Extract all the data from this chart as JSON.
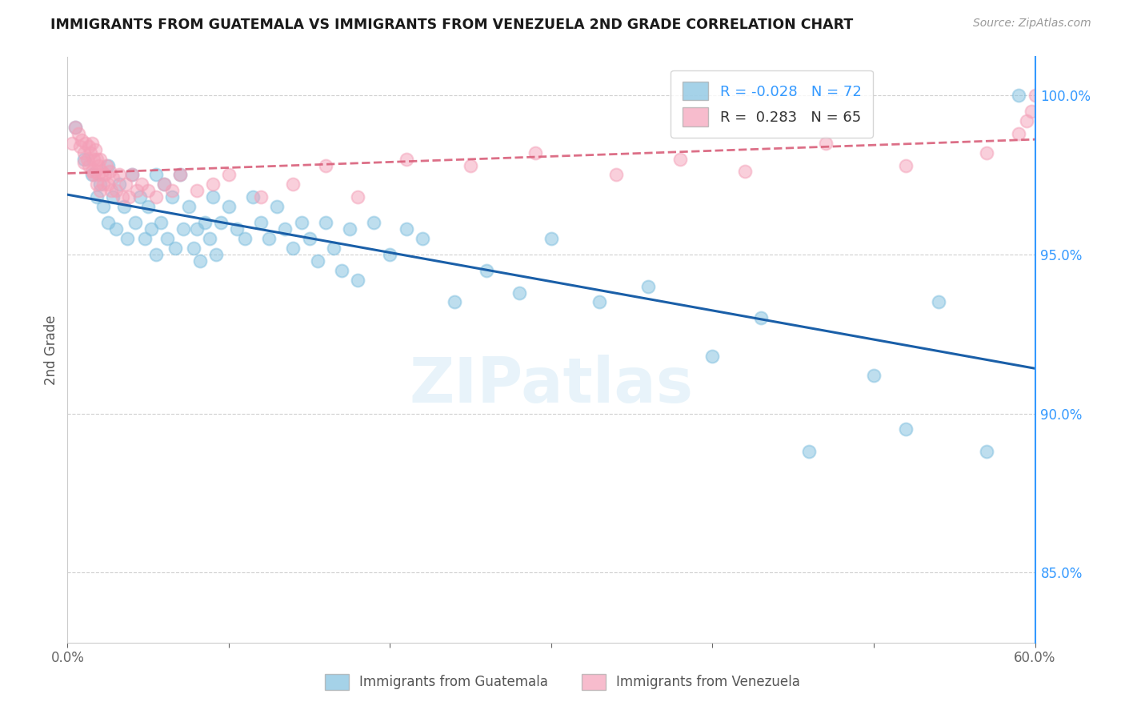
{
  "title": "IMMIGRANTS FROM GUATEMALA VS IMMIGRANTS FROM VENEZUELA 2ND GRADE CORRELATION CHART",
  "source": "Source: ZipAtlas.com",
  "ylabel": "2nd Grade",
  "ylabel_right_labels": [
    "100.0%",
    "95.0%",
    "90.0%",
    "85.0%"
  ],
  "ylabel_right_values": [
    1.0,
    0.95,
    0.9,
    0.85
  ],
  "xmin": 0.0,
  "xmax": 0.6,
  "ymin": 0.828,
  "ymax": 1.012,
  "legend_blue_R": "R = -0.028",
  "legend_blue_N": "N = 72",
  "legend_pink_R": "R =  0.283",
  "legend_pink_N": "N = 65",
  "legend_label_blue": "Immigrants from Guatemala",
  "legend_label_pink": "Immigrants from Venezuela",
  "blue_color": "#7fbfdf",
  "pink_color": "#f4a0b8",
  "blue_line_color": "#1a5fa8",
  "pink_line_color": "#d95f7a",
  "blue_scatter_x": [
    0.005,
    0.01,
    0.015,
    0.018,
    0.02,
    0.022,
    0.025,
    0.025,
    0.028,
    0.03,
    0.032,
    0.035,
    0.037,
    0.04,
    0.042,
    0.045,
    0.048,
    0.05,
    0.052,
    0.055,
    0.055,
    0.058,
    0.06,
    0.062,
    0.065,
    0.067,
    0.07,
    0.072,
    0.075,
    0.078,
    0.08,
    0.082,
    0.085,
    0.088,
    0.09,
    0.092,
    0.095,
    0.1,
    0.105,
    0.11,
    0.115,
    0.12,
    0.125,
    0.13,
    0.135,
    0.14,
    0.145,
    0.15,
    0.155,
    0.16,
    0.165,
    0.17,
    0.175,
    0.18,
    0.19,
    0.2,
    0.21,
    0.22,
    0.24,
    0.26,
    0.28,
    0.3,
    0.33,
    0.36,
    0.4,
    0.43,
    0.46,
    0.5,
    0.52,
    0.54,
    0.57,
    0.59
  ],
  "blue_scatter_y": [
    0.99,
    0.98,
    0.975,
    0.968,
    0.972,
    0.965,
    0.978,
    0.96,
    0.968,
    0.958,
    0.972,
    0.965,
    0.955,
    0.975,
    0.96,
    0.968,
    0.955,
    0.965,
    0.958,
    0.975,
    0.95,
    0.96,
    0.972,
    0.955,
    0.968,
    0.952,
    0.975,
    0.958,
    0.965,
    0.952,
    0.958,
    0.948,
    0.96,
    0.955,
    0.968,
    0.95,
    0.96,
    0.965,
    0.958,
    0.955,
    0.968,
    0.96,
    0.955,
    0.965,
    0.958,
    0.952,
    0.96,
    0.955,
    0.948,
    0.96,
    0.952,
    0.945,
    0.958,
    0.942,
    0.96,
    0.95,
    0.958,
    0.955,
    0.935,
    0.945,
    0.938,
    0.955,
    0.935,
    0.94,
    0.918,
    0.93,
    0.888,
    0.912,
    0.895,
    0.935,
    0.888,
    1.0
  ],
  "pink_scatter_x": [
    0.003,
    0.005,
    0.007,
    0.008,
    0.009,
    0.01,
    0.01,
    0.011,
    0.012,
    0.013,
    0.013,
    0.014,
    0.015,
    0.015,
    0.016,
    0.016,
    0.017,
    0.017,
    0.018,
    0.018,
    0.019,
    0.019,
    0.02,
    0.02,
    0.021,
    0.022,
    0.023,
    0.024,
    0.025,
    0.026,
    0.027,
    0.028,
    0.03,
    0.032,
    0.034,
    0.036,
    0.038,
    0.04,
    0.043,
    0.046,
    0.05,
    0.055,
    0.06,
    0.065,
    0.07,
    0.08,
    0.09,
    0.1,
    0.12,
    0.14,
    0.16,
    0.18,
    0.21,
    0.25,
    0.29,
    0.34,
    0.38,
    0.42,
    0.47,
    0.52,
    0.57,
    0.59,
    0.595,
    0.598,
    0.6
  ],
  "pink_scatter_y": [
    0.985,
    0.99,
    0.988,
    0.984,
    0.986,
    0.982,
    0.979,
    0.985,
    0.98,
    0.984,
    0.978,
    0.982,
    0.985,
    0.976,
    0.98,
    0.975,
    0.983,
    0.976,
    0.98,
    0.972,
    0.978,
    0.975,
    0.98,
    0.97,
    0.976,
    0.972,
    0.975,
    0.978,
    0.972,
    0.976,
    0.97,
    0.974,
    0.97,
    0.975,
    0.968,
    0.972,
    0.968,
    0.975,
    0.97,
    0.972,
    0.97,
    0.968,
    0.972,
    0.97,
    0.975,
    0.97,
    0.972,
    0.975,
    0.968,
    0.972,
    0.978,
    0.968,
    0.98,
    0.978,
    0.982,
    0.975,
    0.98,
    0.976,
    0.985,
    0.978,
    0.982,
    0.988,
    0.992,
    0.995,
    1.0
  ],
  "watermark": "ZIPatlas",
  "grid_color": "#d0d0d0",
  "xtick_positions": [
    0.0,
    0.1,
    0.2,
    0.3,
    0.4,
    0.5,
    0.6
  ],
  "xtick_show_labels": [
    true,
    false,
    false,
    false,
    false,
    false,
    true
  ]
}
